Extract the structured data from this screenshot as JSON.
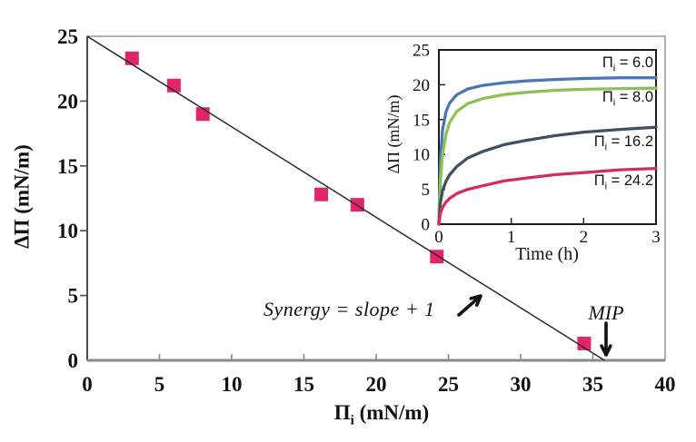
{
  "figure": {
    "background": "#ffffff"
  },
  "labels": {
    "main_y_title": "ΔΠ (mN/m)",
    "main_x_title_pre": "Π",
    "main_x_title_sub": "i",
    "main_x_title_post": " (mN/m)",
    "synergy_text": "Synergy = slope + 1",
    "mip_text": "MIP",
    "inset_y_title": "ΔΠ (mN/m)",
    "inset_x_title": "Time (h)",
    "series_labels": [
      {
        "pre": "Π",
        "sub": "i",
        "post": " = 6.0"
      },
      {
        "pre": "Π",
        "sub": "i",
        "post": " = 8.0"
      },
      {
        "pre": "Π",
        "sub": "i",
        "post": " = 16.2"
      },
      {
        "pre": "Π",
        "sub": "i",
        "post": " = 24.2"
      }
    ]
  },
  "chart_data": [
    {
      "id": "main",
      "type": "scatter",
      "title": "",
      "xlabel": "Pi_i (mN/m)",
      "ylabel": "Delta Pi (mN/m)",
      "xlim": [
        0,
        40
      ],
      "ylim": [
        0,
        25
      ],
      "x_ticks": [
        0,
        5,
        10,
        15,
        20,
        25,
        30,
        35,
        40
      ],
      "y_ticks": [
        0,
        5,
        10,
        15,
        20,
        25
      ],
      "grid": false,
      "points": [
        [
          3.1,
          23.3
        ],
        [
          6.0,
          21.2
        ],
        [
          8.0,
          19.0
        ],
        [
          16.2,
          12.8
        ],
        [
          18.7,
          12.0
        ],
        [
          24.2,
          8.0
        ],
        [
          34.4,
          1.3
        ]
      ],
      "marker": {
        "shape": "square",
        "color": "#E0256B",
        "size": 15
      },
      "trend_line": {
        "from": [
          0,
          25
        ],
        "to": [
          35.8,
          0
        ],
        "color": "#2a2a2a"
      },
      "axis_colors": {
        "border": "#9b9b9b",
        "bottom": "#8a8a8a",
        "left": "#4d4d4d"
      },
      "annotations": [
        {
          "name": "synergy",
          "text": "Synergy = slope + 1",
          "style": "italic",
          "arrow": "ne"
        },
        {
          "name": "mip",
          "text": "MIP",
          "style": "italic",
          "arrow": "down"
        }
      ]
    },
    {
      "id": "inset",
      "type": "line",
      "title": "",
      "xlabel": "Time (h)",
      "ylabel": "Delta Pi (mN/m)",
      "xlim": [
        0,
        3
      ],
      "ylim": [
        0,
        25
      ],
      "x_ticks": [
        0,
        1,
        2,
        3
      ],
      "y_ticks": [
        0,
        5,
        10,
        15,
        20,
        25
      ],
      "grid": false,
      "axis_color": "#1c1c1c",
      "x": [
        0,
        0.02,
        0.05,
        0.1,
        0.15,
        0.25,
        0.4,
        0.6,
        0.9,
        1.2,
        1.6,
        2.0,
        2.5,
        3.0
      ],
      "series": [
        {
          "name": "Pi_i = 6.0",
          "color": "#4C77B5",
          "values": [
            0,
            9,
            13.5,
            16.2,
            17.4,
            18.6,
            19.4,
            19.9,
            20.3,
            20.55,
            20.75,
            20.9,
            21.0,
            21.0
          ]
        },
        {
          "name": "Pi_i = 8.0",
          "color": "#8DC153",
          "values": [
            0,
            6,
            10,
            13.0,
            14.6,
            16.2,
            17.3,
            18.0,
            18.6,
            18.9,
            19.2,
            19.35,
            19.45,
            19.5
          ]
        },
        {
          "name": "Pi_i = 16.2",
          "color": "#3E5062",
          "values": [
            0,
            3,
            4.8,
            6.2,
            7.1,
            8.3,
            9.5,
            10.4,
            11.4,
            12.0,
            12.7,
            13.2,
            13.6,
            13.9
          ]
        },
        {
          "name": "Pi_i = 24.2",
          "color": "#D62A66",
          "values": [
            0,
            1.5,
            2.4,
            3.2,
            3.7,
            4.4,
            5.0,
            5.5,
            6.2,
            6.6,
            7.1,
            7.4,
            7.8,
            8.0
          ]
        }
      ]
    }
  ]
}
